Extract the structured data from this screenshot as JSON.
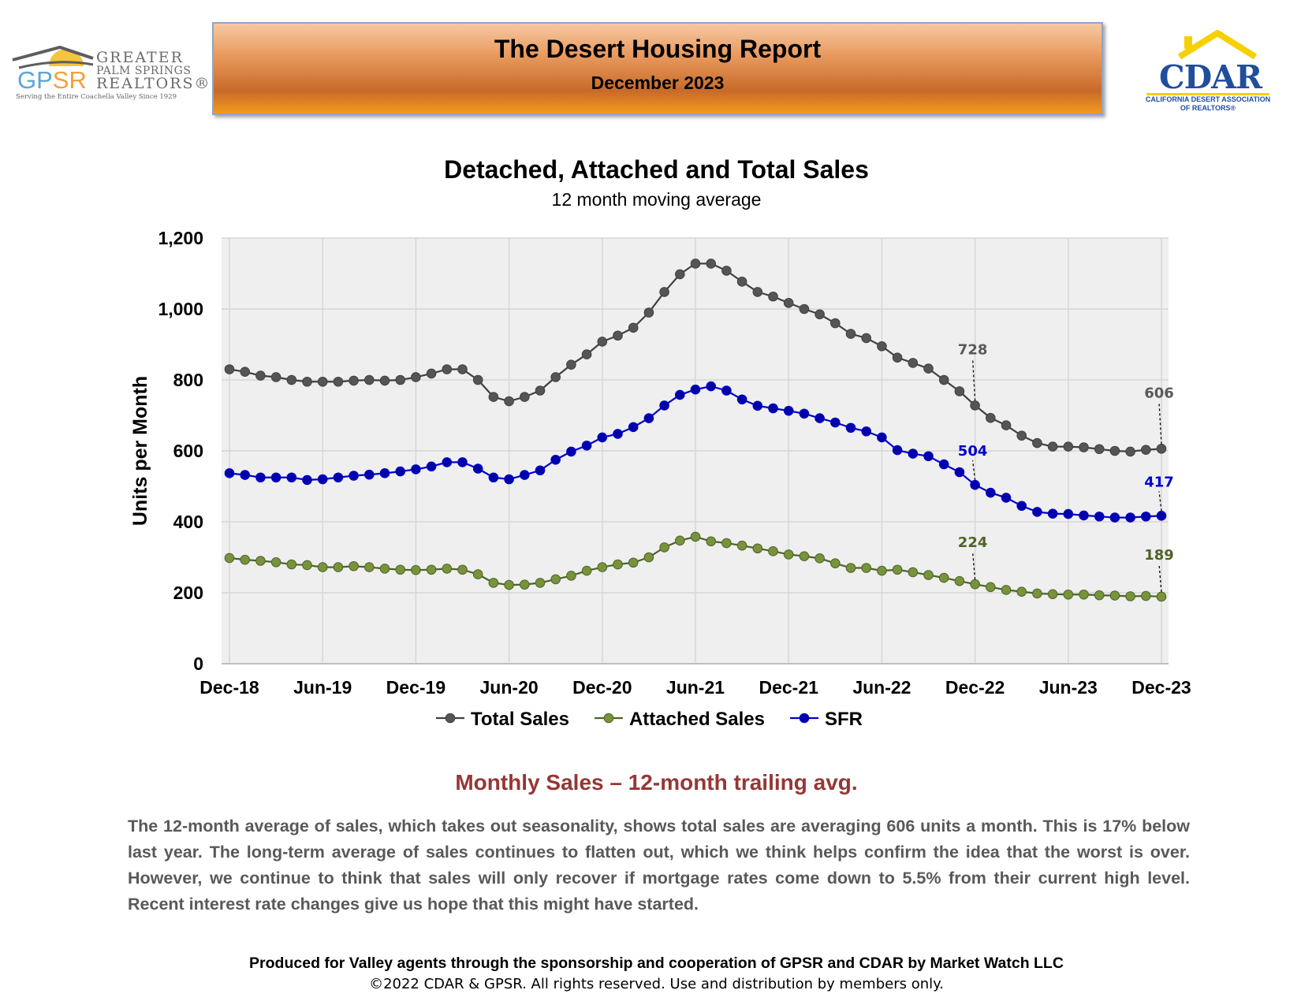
{
  "header": {
    "title": "The Desert Housing Report",
    "subtitle": "December 2023"
  },
  "gpsr_logo": {
    "abbr_g": "GP",
    "abbr_s": "SR",
    "line1": "GREATER",
    "line2": "PALM SPRINGS",
    "line3": "REALTORS®",
    "tagline": "Serving the Entire Coachella Valley Since 1929"
  },
  "cdar_logo": {
    "word": "CDAR",
    "line1": "CALIFORNIA DESERT ASSOCIATION",
    "line2": "OF REALTORS®"
  },
  "chart_data": {
    "type": "line",
    "title": "Detached, Attached and Total Sales",
    "subtitle": "12 month moving average",
    "xlabel": "",
    "ylabel": "Units per Month",
    "ylim": [
      0,
      1200
    ],
    "yticks": [
      "0",
      "200",
      "400",
      "600",
      "800",
      "1,000",
      "1,200"
    ],
    "ytick_values": [
      0,
      200,
      400,
      600,
      800,
      1000,
      1200
    ],
    "xticks": [
      "Dec-18",
      "Jun-19",
      "Dec-19",
      "Jun-20",
      "Dec-20",
      "Jun-21",
      "Dec-21",
      "Jun-22",
      "Dec-22",
      "Jun-23",
      "Dec-23"
    ],
    "xtick_index": [
      0,
      6,
      12,
      18,
      24,
      30,
      36,
      42,
      48,
      54,
      60
    ],
    "grid": true,
    "legend_position": "bottom",
    "colors": {
      "background": "#efefef",
      "grid": "#d6d6d6",
      "total": "#404040",
      "attached": "#4f6228",
      "sfr": "#0000cc"
    },
    "series": [
      {
        "name": "Total Sales",
        "color": "#404040",
        "marker": "#555555",
        "values": [
          830,
          823,
          812,
          808,
          800,
          795,
          795,
          795,
          798,
          800,
          798,
          800,
          808,
          818,
          830,
          830,
          800,
          752,
          740,
          752,
          770,
          808,
          843,
          872,
          908,
          925,
          947,
          990,
          1048,
          1098,
          1128,
          1128,
          1108,
          1077,
          1048,
          1035,
          1017,
          1000,
          985,
          960,
          930,
          918,
          895,
          863,
          848,
          832,
          800,
          768,
          728,
          693,
          672,
          643,
          622,
          612,
          612,
          610,
          605,
          600,
          598,
          603,
          606
        ]
      },
      {
        "name": "Attached Sales",
        "color": "#4f6228",
        "marker": "#77933c",
        "values": [
          298,
          293,
          290,
          286,
          280,
          278,
          272,
          272,
          275,
          272,
          268,
          265,
          264,
          265,
          268,
          265,
          252,
          228,
          222,
          223,
          228,
          238,
          248,
          262,
          272,
          280,
          285,
          300,
          328,
          347,
          358,
          345,
          340,
          333,
          325,
          317,
          308,
          303,
          297,
          283,
          270,
          270,
          262,
          265,
          258,
          250,
          242,
          233,
          224,
          216,
          208,
          203,
          198,
          196,
          195,
          195,
          193,
          192,
          190,
          191,
          189
        ]
      },
      {
        "name": "SFR",
        "color": "#0000cc",
        "marker": "#0000aa",
        "values": [
          537,
          532,
          525,
          525,
          525,
          518,
          520,
          525,
          530,
          533,
          537,
          542,
          548,
          556,
          568,
          568,
          550,
          525,
          520,
          532,
          545,
          575,
          598,
          615,
          638,
          648,
          667,
          692,
          728,
          758,
          773,
          782,
          770,
          745,
          727,
          720,
          713,
          705,
          692,
          680,
          665,
          655,
          638,
          602,
          592,
          585,
          562,
          540,
          504,
          482,
          468,
          445,
          428,
          423,
          422,
          418,
          415,
          412,
          412,
          415,
          417
        ]
      }
    ],
    "annotations": [
      {
        "series": "Total Sales",
        "index": 48,
        "label": "728",
        "color": "#595959"
      },
      {
        "series": "Total Sales",
        "index": 60,
        "label": "606",
        "color": "#595959"
      },
      {
        "series": "SFR",
        "index": 48,
        "label": "504",
        "color": "#0000cc"
      },
      {
        "series": "SFR",
        "index": 60,
        "label": "417",
        "color": "#0000cc"
      },
      {
        "series": "Attached Sales",
        "index": 48,
        "label": "224",
        "color": "#4f6228"
      },
      {
        "series": "Attached Sales",
        "index": 60,
        "label": "189",
        "color": "#4f6228"
      }
    ]
  },
  "commentary": {
    "heading": "Monthly Sales – 12-month trailing avg.",
    "body": "The 12-month average of sales, which takes out seasonality, shows total sales are averaging 606 units a month. This is 17% below last year. The long-term average of sales continues to flatten out, which we think helps confirm the idea that the worst is over. However, we continue to think that sales will only recover if mortgage rates come down to 5.5% from their current high level. Recent interest rate changes give us hope that this might have started."
  },
  "footer": {
    "line1": "Produced for Valley agents through the sponsorship and cooperation of GPSR and CDAR by Market Watch LLC",
    "line2": "©2022 CDAR & GPSR.  All rights reserved.  Use and distribution by members only."
  }
}
